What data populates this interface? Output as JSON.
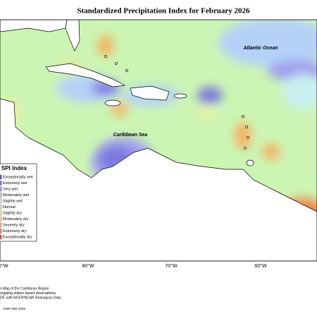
{
  "title": "Standardized Precipitation Index for February 2026",
  "labels": {
    "atlantic": "Atlantic Ocean",
    "caribbean": "Caribbean Sea"
  },
  "longitudes": [
    "0°W",
    "80°W",
    "70°W",
    "60°W"
  ],
  "legend": {
    "title": "SPI Index",
    "items": [
      {
        "label": "Exceptionally wet",
        "color": "#5a50c8"
      },
      {
        "label": "Extremely wet",
        "color": "#7d78e0"
      },
      {
        "label": "Very wet",
        "color": "#a0a0f0"
      },
      {
        "label": "Moderately wet",
        "color": "#b4d2f8"
      },
      {
        "label": "Slightly wet",
        "color": "#c8f0f0"
      },
      {
        "label": "Normal",
        "color": "#ccf5b4"
      },
      {
        "label": "Slightly dry",
        "color": "#f0f0a0"
      },
      {
        "label": "Moderately dry",
        "color": "#f5dc82"
      },
      {
        "label": "Severely dry",
        "color": "#f5b464"
      },
      {
        "label": "Extremely dry",
        "color": "#f08c50"
      },
      {
        "label": "Exceptionally dry",
        "color": "#e05050"
      }
    ]
  },
  "footer": [
    "n Map of the Caribbean Region",
    "regating station based observations,",
    "DF, with NCEP/NCAR Reanalysis Data."
  ],
  "credit": "CIMH Mar-2026"
}
